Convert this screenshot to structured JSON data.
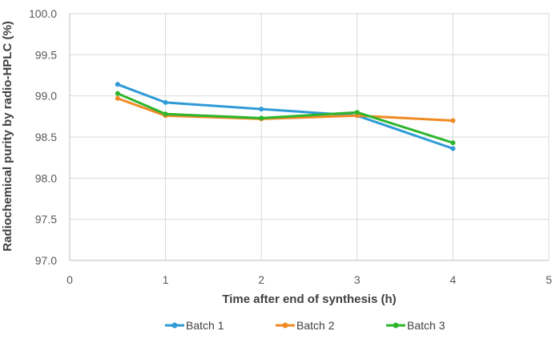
{
  "chart_data": {
    "type": "line",
    "title": "",
    "xlabel": "Time after end of synthesis (h)",
    "ylabel": "Radiochemical purity by radio-HPLC (%)",
    "xlim": [
      0,
      5
    ],
    "ylim": [
      97.0,
      100.0
    ],
    "x_ticks": [
      "0",
      "1",
      "2",
      "3",
      "4",
      "5"
    ],
    "y_ticks": [
      "97.0",
      "97.5",
      "98.0",
      "98.5",
      "99.0",
      "99.5",
      "100.0"
    ],
    "grid": true,
    "legend_position": "bottom",
    "x": [
      0.5,
      1,
      2,
      3,
      4
    ],
    "series": [
      {
        "name": "Batch 1",
        "color": "#2e9ad6",
        "values": [
          99.14,
          98.92,
          98.84,
          98.76,
          98.36
        ]
      },
      {
        "name": "Batch 2",
        "color": "#f08a24",
        "values": [
          98.97,
          98.76,
          98.72,
          98.76,
          98.7
        ]
      },
      {
        "name": "Batch 3",
        "color": "#2db52d",
        "values": [
          99.03,
          98.78,
          98.73,
          98.8,
          98.43
        ]
      }
    ]
  }
}
